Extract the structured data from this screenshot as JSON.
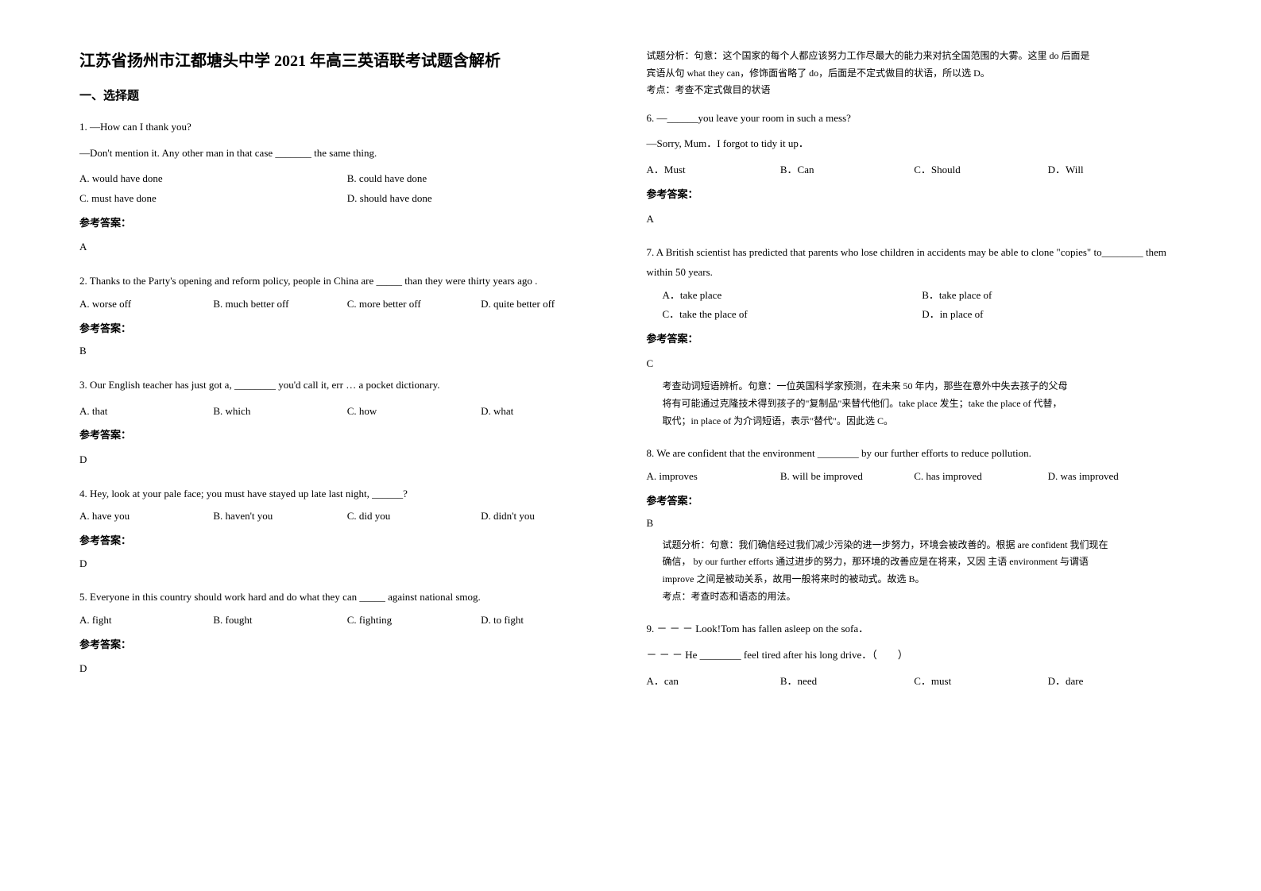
{
  "title": "江苏省扬州市江都塘头中学 2021 年高三英语联考试题含解析",
  "section1_heading": "一、选择题",
  "answer_label": "参考答案：",
  "q1": {
    "line1": "1. —How can I thank you?",
    "line2": "—Don't mention it. Any other man in that case _______ the same thing.",
    "optA": "A. would have done",
    "optB": "B. could have done",
    "optC": "C. must have done",
    "optD": "D. should have done",
    "answer": "A"
  },
  "q2": {
    "line1": "2. Thanks to the Party's opening and reform policy, people in China are _____ than they were thirty years ago .",
    "optA": "A. worse off",
    "optB": "B. much better off",
    "optC": "C. more better off",
    "optD": "D. quite better off",
    "answer": "B"
  },
  "q3": {
    "line1": "3. Our English teacher has just got a, ________ you'd call it, err … a pocket dictionary.",
    "optA": "A. that",
    "optB": "B. which",
    "optC": "C. how",
    "optD": "D. what",
    "answer": "D"
  },
  "q4": {
    "line1": "4. Hey, look at your pale face; you must have stayed up late last night, ______?",
    "optA": "A. have you",
    "optB": "B. haven't you",
    "optC": "C. did you",
    "optD": "D. didn't you",
    "answer": "D"
  },
  "q5": {
    "line1": "5. Everyone in this country should work hard and do what they can _____ against national smog.",
    "optA": "A. fight",
    "optB": "B. fought",
    "optC": "C. fighting",
    "optD": "D. to fight",
    "answer": "D"
  },
  "q5_analysis": {
    "line1": "试题分析：句意：这个国家的每个人都应该努力工作尽最大的能力来对抗全国范围的大雾。这里 do 后面是",
    "line2": "宾语从句 what they can，修饰面省略了 do，后面是不定式做目的状语，所以选 D。",
    "line3": "考点：考查不定式做目的状语"
  },
  "q6": {
    "line1": "6. —______you leave your room in such a mess?",
    "line2": "—Sorry, Mum．I forgot to tidy it up．",
    "optA": "A．Must",
    "optB": "B．Can",
    "optC": "C．Should",
    "optD": "D．Will",
    "answer": "A"
  },
  "q7": {
    "line1": "7. A British scientist has predicted that parents who lose children in accidents may be able to clone \"copies\" to________ them within 50 years.",
    "optA": "A．take place",
    "optB": "B．take place of",
    "optC": "C．take the place of",
    "optD": "D．in place of",
    "answer": "C",
    "analysis1": "考查动词短语辨析。句意：一位英国科学家预测，在未来 50 年内，那些在意外中失去孩子的父母",
    "analysis2": "将有可能通过克隆技术得到孩子的\"复制品\"来替代他们。take place 发生；take the place of 代替，",
    "analysis3": "取代；in place of 为介词短语，表示\"替代\"。因此选 C。"
  },
  "q8": {
    "line1": "8. We are confident that the environment ________ by our further efforts to reduce pollution.",
    "optA": "A. improves",
    "optB": "B. will be improved",
    "optC": "C. has improved",
    "optD": "D. was improved",
    "answer": "B",
    "analysis1": "试题分析：句意：我们确信经过我们减少污染的进一步努力，环境会被改善的。根据 are confident 我们现在",
    "analysis2": "确信， by our further efforts 通过进步的努力，那环境的改善应是在将来，又因 主语 environment 与谓语",
    "analysis3": "improve 之间是被动关系，故用一般将来时的被动式。故选 B。",
    "analysis4": "考点：考查时态和语态的用法。"
  },
  "q9": {
    "line1": "9. － － － Look!Tom has fallen asleep on the sofa．",
    "line2": "－ － － He ________ feel tired after his long drive．（　　）",
    "optA": "A．can",
    "optB": "B．need",
    "optC": "C．must",
    "optD": "D．dare"
  }
}
